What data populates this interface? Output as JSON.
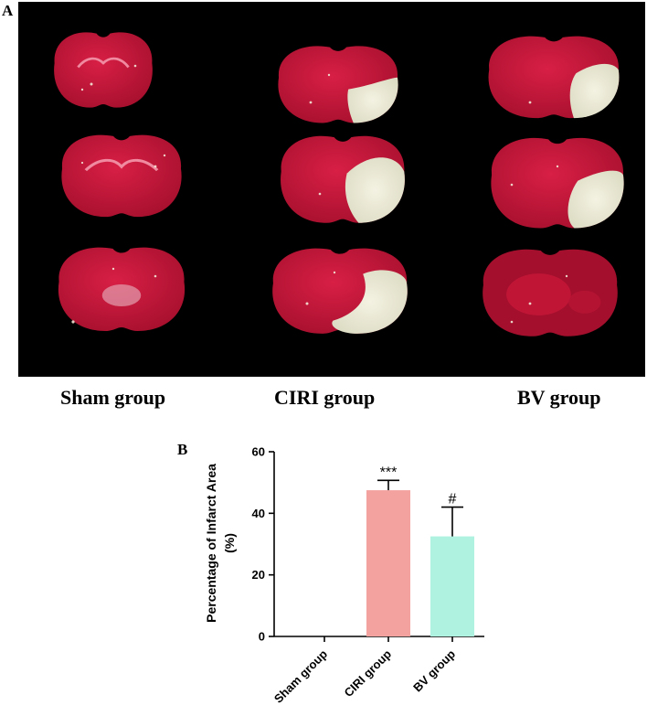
{
  "panels": {
    "a": "A",
    "b": "B"
  },
  "photo": {
    "group_labels": [
      "Sham group",
      "CIRI group",
      "BV group"
    ],
    "colors": {
      "background": "#000000",
      "tissue_red": "#c8173a",
      "infarct": "#ecebd8"
    }
  },
  "chart_data": {
    "type": "bar",
    "categories": [
      "Sham group",
      "CIRI group",
      "BV group"
    ],
    "values": [
      0,
      47.5,
      32.5
    ],
    "errors": [
      0,
      3.2,
      9.5
    ],
    "annotations": [
      "",
      "***",
      "#"
    ],
    "colors": [
      "#f4a29f",
      "#f4a29f",
      "#aef2df"
    ],
    "ylabel_line1": "Percentage of Infarct Area",
    "ylabel_line2": "(%)",
    "ylim": [
      0,
      60
    ],
    "yticks": [
      0,
      20,
      40,
      60
    ],
    "xlabel": ""
  }
}
